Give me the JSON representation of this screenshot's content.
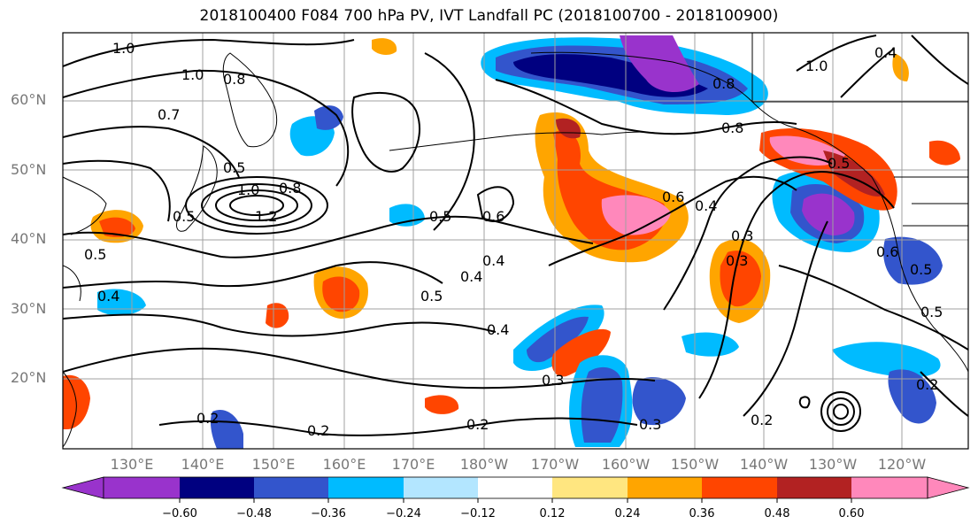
{
  "title": "2018100400 F084 700 hPa PV, IVT Landfall PC (2018100700 - 2018100900)",
  "axes": {
    "lat_labels": [
      "60°N",
      "50°N",
      "40°N",
      "30°N",
      "20°N"
    ],
    "lon_labels": [
      "130°E",
      "140°E",
      "150°E",
      "160°E",
      "170°E",
      "180°W",
      "170°W",
      "160°W",
      "150°W",
      "140°W",
      "130°W",
      "120°W"
    ],
    "grid": true
  },
  "colorbar": {
    "ticks": [
      "−0.60",
      "−0.48",
      "−0.36",
      "−0.24",
      "−0.12",
      "0.12",
      "0.24",
      "0.36",
      "0.48",
      "0.60"
    ],
    "colors": [
      "#9933cc",
      "#000080",
      "#3355cc",
      "#00bbff",
      "#b3e6ff",
      "#ffffff",
      "#ffe680",
      "#ffa500",
      "#ff4500",
      "#b22222",
      "#ff88bb"
    ],
    "extend": "both"
  },
  "contour_labels": [
    "1.0",
    "1.0",
    "0.8",
    "0.7",
    "0.5",
    "1.0",
    "0.8",
    "1.2",
    "0.5",
    "0.5",
    "0.4",
    "0.4",
    "0.5",
    "0.6",
    "0.5",
    "0.4",
    "0.4",
    "0.3",
    "0.2",
    "0.2",
    "0.2",
    "0.3",
    "0.6",
    "0.4",
    "0.8",
    "0.8",
    "0.5",
    "0.4",
    "1.0",
    "0.5",
    "0.3",
    "0.5",
    "0.2",
    "0.2",
    "0.3",
    "0.6"
  ],
  "colors": {
    "land_outline": "#000000",
    "grid": "#a0a0a0",
    "contour": "#000000"
  }
}
